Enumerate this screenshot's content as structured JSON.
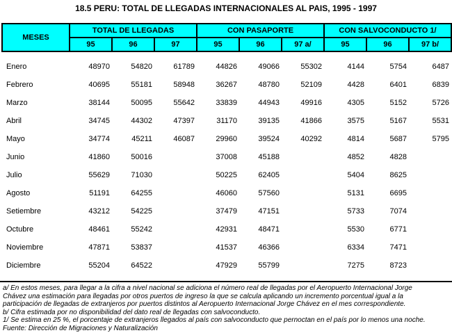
{
  "title": "18.5 PERU: TOTAL DE LLEGADAS INTERNACIONALES AL PAIS, 1995 - 1997",
  "colors": {
    "header_bg": "#00ffff",
    "border": "#000000",
    "text": "#000000",
    "background": "#ffffff"
  },
  "table": {
    "corner_label": "MESES",
    "groups": [
      {
        "label": "TOTAL DE LLEGADAS",
        "sub": [
          "95",
          "96",
          "97"
        ]
      },
      {
        "label": "CON PASAPORTE",
        "sub": [
          "95",
          "96",
          "97 a/"
        ]
      },
      {
        "label": "CON SALVOCONDUCTO 1/",
        "sub": [
          "95",
          "96",
          "97 b/"
        ]
      }
    ],
    "rows": [
      {
        "mes": "Enero",
        "values": [
          "48970",
          "54820",
          "61789",
          "44826",
          "49066",
          "55302",
          "4144",
          "5754",
          "6487"
        ]
      },
      {
        "mes": "Febrero",
        "values": [
          "40695",
          "55181",
          "58948",
          "36267",
          "48780",
          "52109",
          "4428",
          "6401",
          "6839"
        ]
      },
      {
        "mes": "Marzo",
        "values": [
          "38144",
          "50095",
          "55642",
          "33839",
          "44943",
          "49916",
          "4305",
          "5152",
          "5726"
        ]
      },
      {
        "mes": "Abril",
        "values": [
          "34745",
          "44302",
          "47397",
          "31170",
          "39135",
          "41866",
          "3575",
          "5167",
          "5531"
        ]
      },
      {
        "mes": "Mayo",
        "values": [
          "34774",
          "45211",
          "46087",
          "29960",
          "39524",
          "40292",
          "4814",
          "5687",
          "5795"
        ]
      },
      {
        "mes": "Junio",
        "values": [
          "41860",
          "50016",
          "",
          "37008",
          "45188",
          "",
          "4852",
          "4828",
          ""
        ]
      },
      {
        "mes": "Julio",
        "values": [
          "55629",
          "71030",
          "",
          "50225",
          "62405",
          "",
          "5404",
          "8625",
          ""
        ]
      },
      {
        "mes": "Agosto",
        "values": [
          "51191",
          "64255",
          "",
          "46060",
          "57560",
          "",
          "5131",
          "6695",
          ""
        ]
      },
      {
        "mes": "Setiembre",
        "values": [
          "43212",
          "54225",
          "",
          "37479",
          "47151",
          "",
          "5733",
          "7074",
          ""
        ]
      },
      {
        "mes": "Octubre",
        "values": [
          "48461",
          "55242",
          "",
          "42931",
          "48471",
          "",
          "5530",
          "6771",
          ""
        ]
      },
      {
        "mes": "Noviembre",
        "values": [
          "47871",
          "53837",
          "",
          "41537",
          "46366",
          "",
          "6334",
          "7471",
          ""
        ]
      },
      {
        "mes": "Diciembre",
        "values": [
          "55204",
          "64522",
          "",
          "47929",
          "55799",
          "",
          "7275",
          "8723",
          ""
        ]
      }
    ]
  },
  "footnotes": [
    "a/ En estos meses, para llegar a la cifra a nivel nacional se adiciona el número real de llegadas por el Aeropuerto Internacional Jorge",
    "Chávez una estimación para llegadas por otros puertos de ingreso la que se calcula aplicando un incremento porcentual igual a la",
    "participación de llegadas de extranjeros por puertos distintos al Aeropuerto Internacional Jorge Chávez en el mes correspondiente.",
    "b/  Cifra estimada por no disponibilidad del dato real de llegadas con salvoconducto.",
    "1/ Se estima en 25 %, el porcentaje de extranjeros llegados al país con salvoconducto que pernoctan en el país por lo menos una noche.",
    "Fuente: Dirección de Migraciones y Naturalización"
  ]
}
